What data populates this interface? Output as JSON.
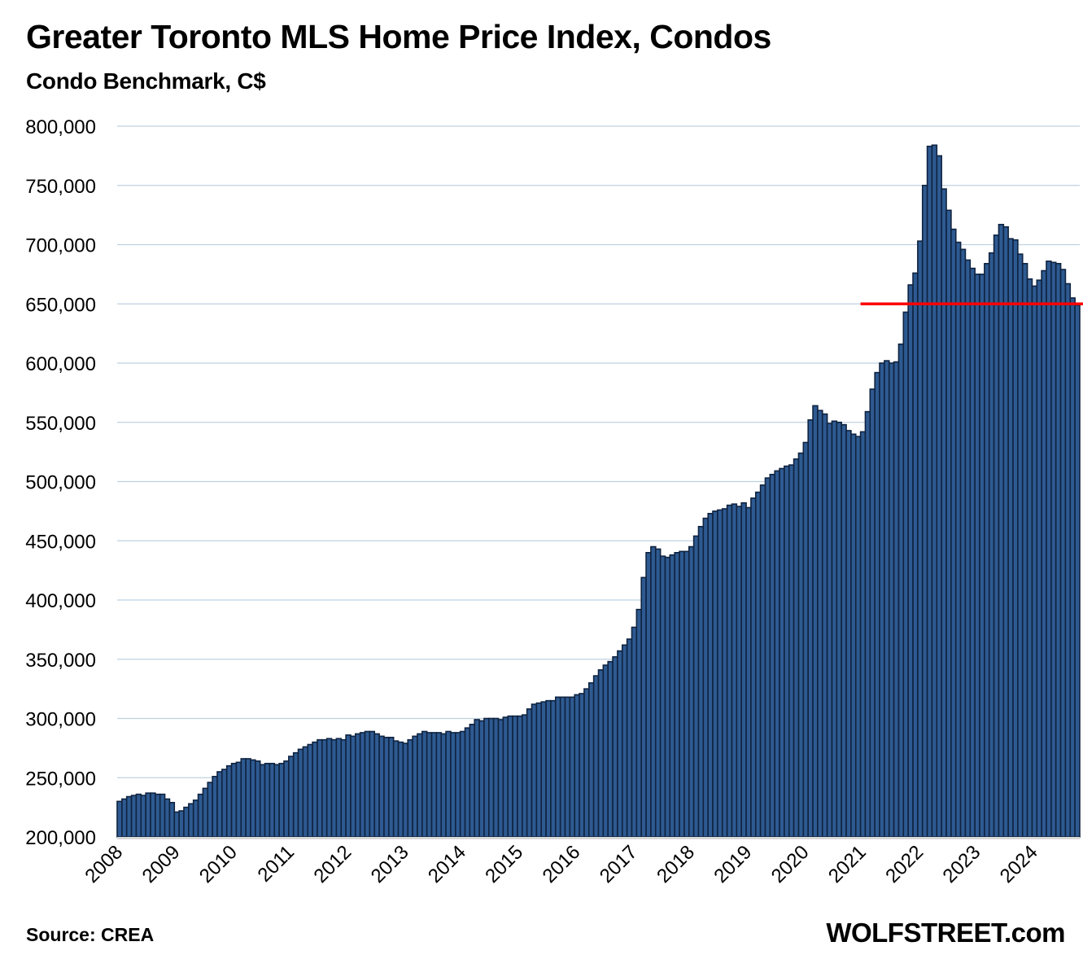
{
  "header": {
    "title": "Greater Toronto MLS Home Price Index, Condos",
    "subtitle": "Condo Benchmark, C$"
  },
  "footer": {
    "source": "Source: CREA",
    "brand": "WOLFSTREET.com"
  },
  "colors": {
    "bar_fill": "#2E5A91",
    "bar_stroke": "#0F2340",
    "grid": "#BFD1E0",
    "reference_line": "#FF0000"
  },
  "chart_data": {
    "type": "bar",
    "title": "Greater Toronto MLS Home Price Index, Condos",
    "subtitle": "Condo Benchmark, C$",
    "xlabel": "",
    "ylabel": "",
    "ylim": [
      200000,
      800000
    ],
    "yticks": [
      200000,
      250000,
      300000,
      350000,
      400000,
      450000,
      500000,
      550000,
      600000,
      650000,
      700000,
      750000,
      800000
    ],
    "ytick_labels": [
      "200,000",
      "250,000",
      "300,000",
      "350,000",
      "400,000",
      "450,000",
      "500,000",
      "550,000",
      "600,000",
      "650,000",
      "700,000",
      "750,000",
      "800,000"
    ],
    "xtick_labels": [
      "2008",
      "2009",
      "2010",
      "2011",
      "2012",
      "2013",
      "2014",
      "2015",
      "2016",
      "2017",
      "2018",
      "2019",
      "2020",
      "2021",
      "2022",
      "2023",
      "2024"
    ],
    "grid": true,
    "legend": "none",
    "frequency": "monthly",
    "start": "2008-01",
    "end": "2024-10",
    "reference_line": {
      "value": 650000,
      "start": "2021-01",
      "end": "2024-10",
      "color": "red"
    },
    "values": [
      230000,
      232000,
      234000,
      235000,
      236000,
      235000,
      237000,
      237000,
      236000,
      236000,
      232000,
      229000,
      221000,
      222000,
      225000,
      228000,
      231000,
      236000,
      241000,
      246000,
      251000,
      255000,
      257000,
      260000,
      262000,
      263000,
      266000,
      266000,
      265000,
      264000,
      261000,
      262000,
      262000,
      261000,
      262000,
      264000,
      268000,
      271000,
      274000,
      276000,
      278000,
      280000,
      282000,
      282000,
      283000,
      282000,
      283000,
      282000,
      286000,
      285000,
      287000,
      288000,
      289000,
      289000,
      287000,
      285000,
      284000,
      284000,
      281000,
      280000,
      279000,
      282000,
      285000,
      287000,
      289000,
      288000,
      288000,
      288000,
      287000,
      289000,
      288000,
      288000,
      289000,
      292000,
      295000,
      299000,
      298000,
      300000,
      300000,
      300000,
      299000,
      301000,
      302000,
      302000,
      302000,
      303000,
      308000,
      312000,
      313000,
      314000,
      315000,
      315000,
      318000,
      318000,
      318000,
      318000,
      320000,
      321000,
      325000,
      330000,
      336000,
      341000,
      345000,
      348000,
      352000,
      357000,
      362000,
      367000,
      377000,
      392000,
      419000,
      440000,
      445000,
      443000,
      437000,
      436000,
      438000,
      440000,
      441000,
      441000,
      445000,
      454000,
      462000,
      469000,
      473000,
      475000,
      476000,
      477000,
      480000,
      481000,
      479000,
      482000,
      478000,
      486000,
      491000,
      497000,
      503000,
      506000,
      509000,
      511000,
      513000,
      514000,
      519000,
      524000,
      533000,
      552000,
      564000,
      560000,
      557000,
      549000,
      551000,
      550000,
      548000,
      543000,
      540000,
      538000,
      542000,
      559000,
      578000,
      592000,
      600000,
      602000,
      600000,
      601000,
      616000,
      643000,
      666000,
      676000,
      703000,
      750000,
      783000,
      784000,
      775000,
      747000,
      729000,
      713000,
      702000,
      696000,
      687000,
      680000,
      675000,
      675000,
      684000,
      693000,
      708000,
      717000,
      715000,
      705000,
      704000,
      692000,
      684000,
      671000,
      665000,
      670000,
      678000,
      686000,
      685000,
      684000,
      679000,
      667000,
      655000,
      649000
    ]
  }
}
